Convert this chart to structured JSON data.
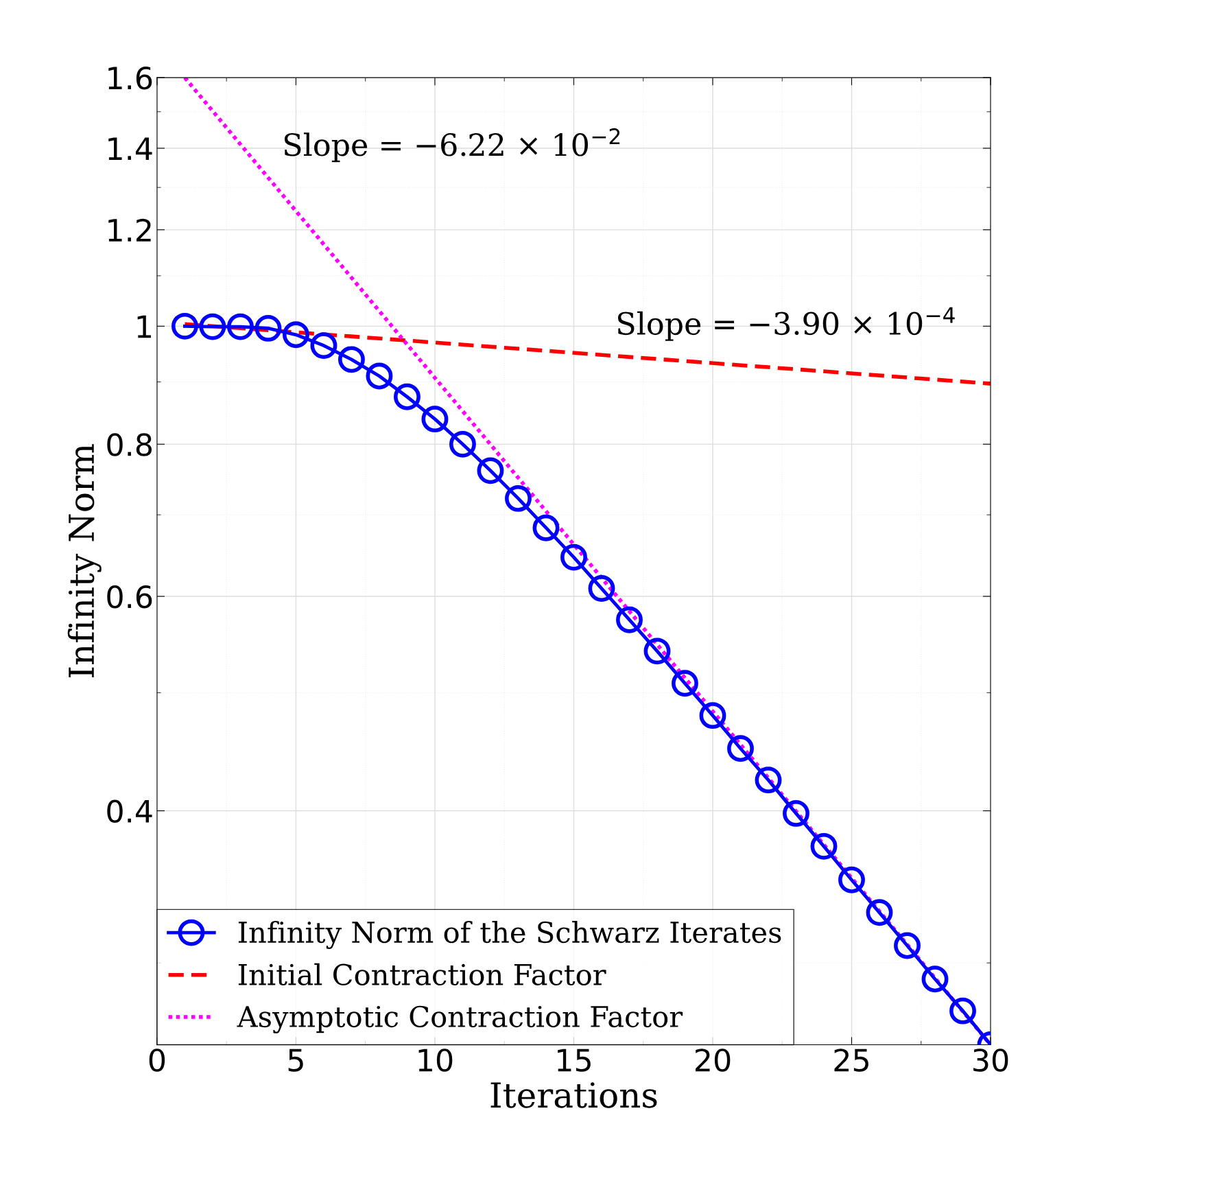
{
  "chart_data": {
    "type": "line",
    "xlabel": "Iterations",
    "ylabel": "Infinity Norm",
    "log": "y",
    "xlim": [
      0,
      30
    ],
    "xticks": [
      0,
      5,
      10,
      15,
      20,
      25,
      30
    ],
    "ylim": [
      0.257,
      1.6
    ],
    "yticks": [
      0.4,
      0.6,
      0.8,
      1,
      1.2,
      1.4,
      1.6
    ],
    "grid": true,
    "legend": "bottom left",
    "annotations": [
      "Slope = −6.22 × 10$^{−2}$",
      "Slope = −3.90 × 10$^{−4}$"
    ],
    "series": [
      {
        "name": "Infinity Norm of the Schwarz Iterates",
        "color": "#0000ff",
        "marker": "circle",
        "line_style": "solid",
        "x": [
          1,
          2,
          3,
          4,
          5,
          6,
          7,
          8,
          9,
          10,
          11,
          12,
          13,
          14,
          15,
          16,
          17,
          18,
          19,
          20,
          21,
          22,
          23,
          24,
          25,
          26,
          27,
          28,
          29,
          30
        ],
        "values": [
          1.0,
          0.999,
          0.999,
          0.996,
          0.984,
          0.964,
          0.939,
          0.91,
          0.875,
          0.839,
          0.8,
          0.761,
          0.722,
          0.683,
          0.646,
          0.609,
          0.574,
          0.541,
          0.509,
          0.479,
          0.45,
          0.424,
          0.398,
          0.374,
          0.351,
          0.33,
          0.31,
          0.291,
          0.274,
          0.257
        ]
      },
      {
        "name": "Initial Contraction Factor",
        "color": "#ff0000",
        "marker": "none",
        "line_style": "dashed",
        "x": [
          1,
          30
        ],
        "values": [
          1.004,
          0.897
        ]
      },
      {
        "name": "Asymptotic Contraction Factor",
        "color": "#ff00ff",
        "marker": "none",
        "line_style": "dotted",
        "x": [
          1,
          30
        ],
        "values": [
          1.6,
          0.257
        ]
      }
    ]
  }
}
